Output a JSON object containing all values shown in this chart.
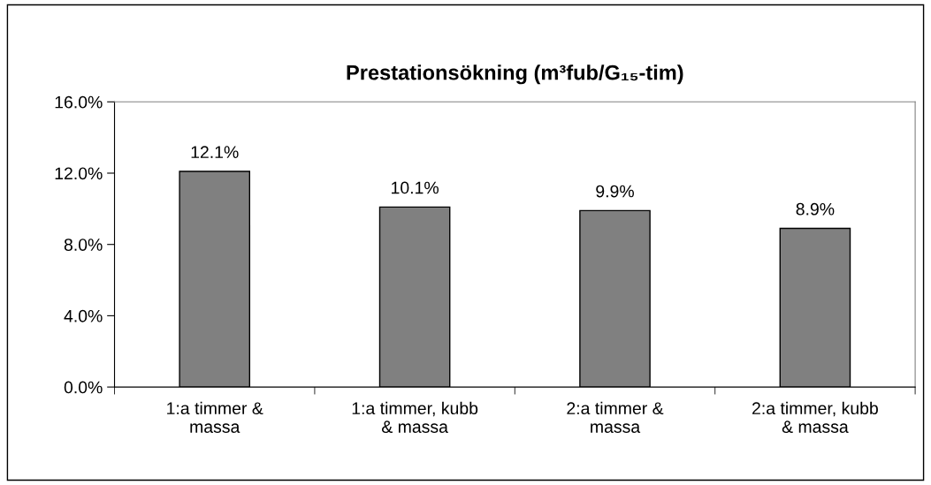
{
  "chart_data": {
    "type": "bar",
    "title": "Prestationsökning (m³fub/G₁₅-tim)",
    "categories": [
      "1:a timmer &\nmassa",
      "1:a timmer, kubb\n& massa",
      "2:a timmer &\nmassa",
      "2:a timmer, kubb\n& massa"
    ],
    "values": [
      12.1,
      10.1,
      9.9,
      8.9
    ],
    "value_labels": [
      "12.1%",
      "10.1%",
      "9.9%",
      "8.9%"
    ],
    "color": "#808080",
    "ylim": [
      0,
      16
    ],
    "yticks": [
      {
        "value": 0,
        "label": "0.0%"
      },
      {
        "value": 4,
        "label": "4.0%"
      },
      {
        "value": 8,
        "label": "8.0%"
      },
      {
        "value": 12,
        "label": "12.0%"
      },
      {
        "value": 16,
        "label": "16.0%"
      }
    ],
    "grid": false,
    "legend": false
  }
}
